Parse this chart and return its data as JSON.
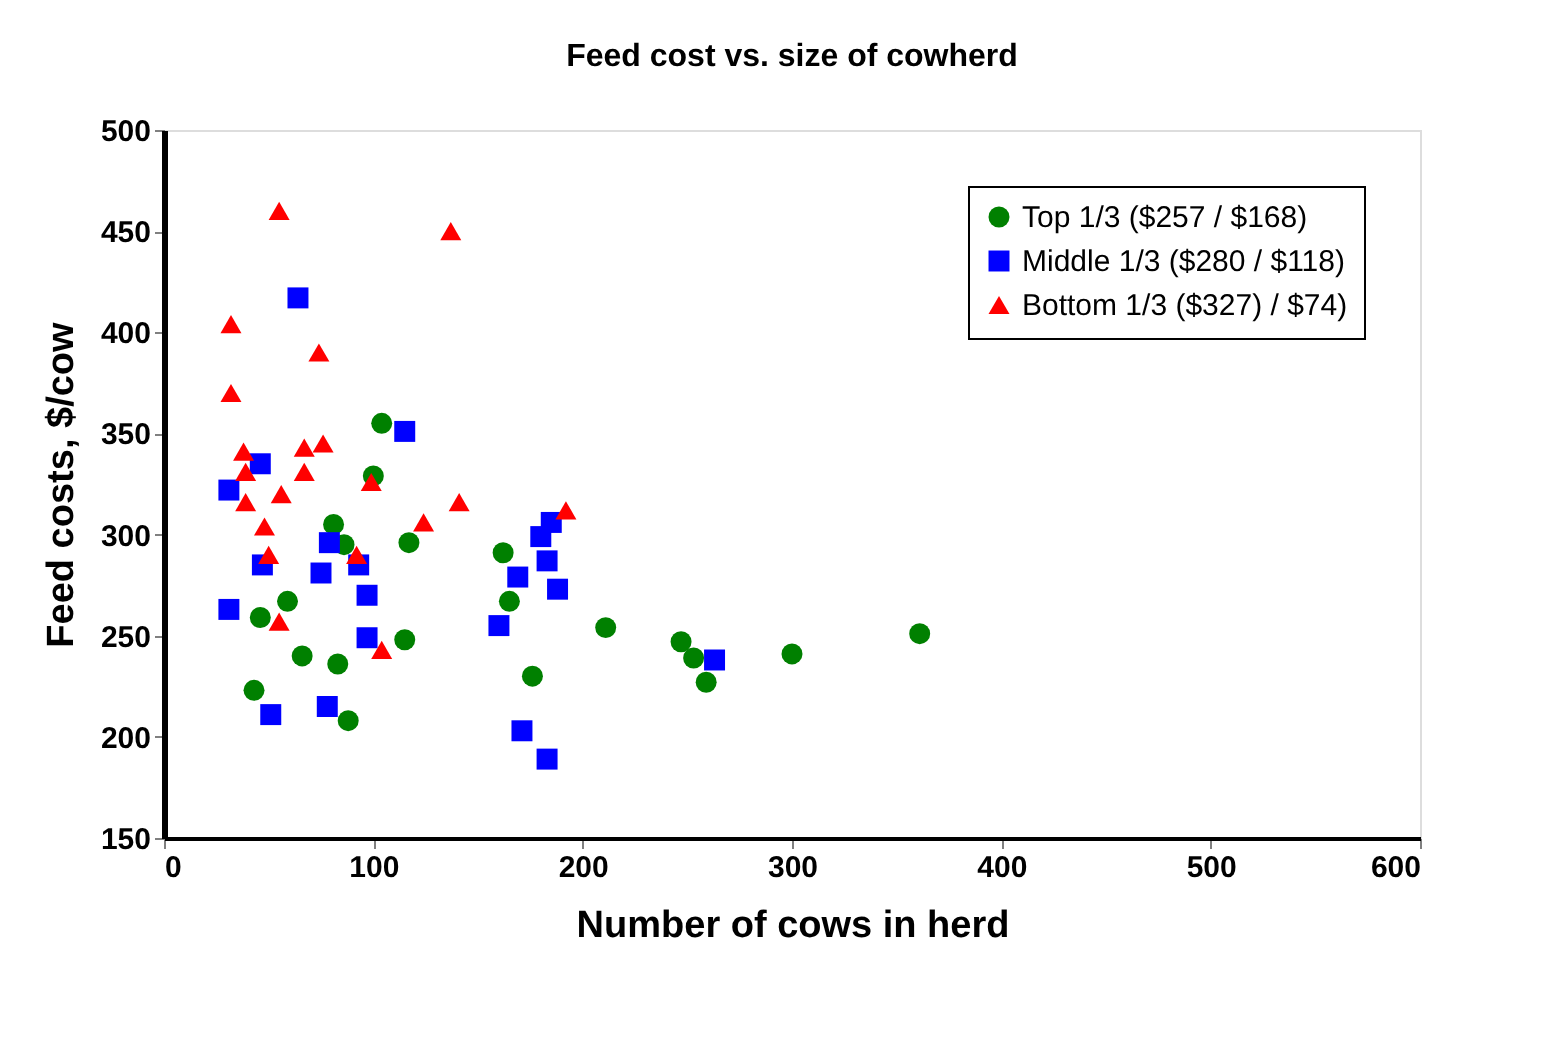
{
  "chart_data": {
    "type": "scatter",
    "title": "Feed cost vs. size of cowherd",
    "xlabel": "Number of cows in herd",
    "ylabel": "Feed costs, $/cow",
    "xlim": [
      0,
      600
    ],
    "xticks": [
      0,
      100,
      200,
      300,
      400,
      500,
      600
    ],
    "ylim": [
      150,
      500
    ],
    "yticks": [
      150,
      200,
      250,
      300,
      350,
      400,
      450,
      500
    ],
    "grid": false,
    "legend": "top right",
    "series": [
      {
        "name": "Top 1/3 ($257 / $168)",
        "color": "#008000",
        "marker": "circle",
        "x": [
          43,
          46,
          59,
          66,
          81,
          83,
          86,
          88,
          100,
          104,
          115,
          117,
          162,
          165,
          176,
          211,
          247,
          253,
          259,
          300,
          361
        ],
        "values": [
          223,
          259,
          267,
          240,
          305,
          236,
          295,
          208,
          329,
          355,
          248,
          296,
          291,
          267,
          230,
          254,
          247,
          239,
          227,
          241,
          251
        ]
      },
      {
        "name": "Middle 1/3 ($280 / $118)",
        "color": "#0000ff",
        "marker": "square",
        "x": [
          31,
          31,
          46,
          47,
          51,
          64,
          75,
          78,
          79,
          93,
          97,
          97,
          115,
          160,
          169,
          171,
          180,
          183,
          183,
          185,
          188,
          263
        ],
        "values": [
          322,
          263,
          335,
          285,
          211,
          417,
          281,
          215,
          296,
          285,
          270,
          249,
          351,
          255,
          279,
          203,
          299,
          287,
          189,
          306,
          273,
          238
        ]
      },
      {
        "name": "Bottom 1/3 ($327) / $74)",
        "color": "#ff0000",
        "marker": "triangle",
        "x": [
          32,
          32,
          38,
          39,
          39,
          48,
          50,
          55,
          55,
          56,
          67,
          67,
          74,
          76,
          92,
          99,
          104,
          124,
          137,
          141,
          192
        ],
        "values": [
          404,
          370,
          341,
          331,
          316,
          304,
          290,
          257,
          460,
          320,
          343,
          331,
          390,
          345,
          290,
          326,
          243,
          306,
          450,
          316,
          312
        ]
      }
    ]
  }
}
